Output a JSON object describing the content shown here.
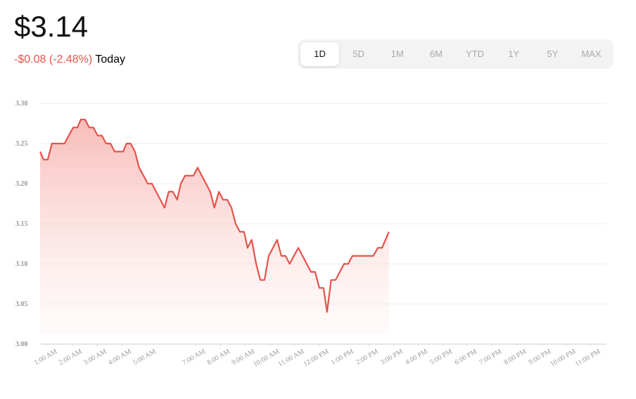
{
  "header": {
    "price": "$3.14",
    "change": "-$0.08 (-2.48%)",
    "change_label": "Today",
    "tabs": [
      "1D",
      "5D",
      "1M",
      "6M",
      "YTD",
      "1Y",
      "5Y",
      "MAX"
    ],
    "selected_tab": 0
  },
  "chart_data": {
    "type": "line",
    "color": "#e5534b",
    "grid": true,
    "x": [
      0.69,
      0.83,
      1.0,
      1.17,
      1.34,
      1.68,
      1.85,
      2.03,
      2.2,
      2.34,
      2.51,
      2.68,
      2.85,
      3.02,
      3.19,
      3.37,
      3.54,
      3.71,
      4.05,
      4.19,
      4.36,
      4.53,
      4.7,
      4.88,
      5.05,
      5.22,
      5.39,
      5.56,
      5.73,
      5.9,
      6.07,
      6.24,
      6.39,
      6.56,
      6.9,
      7.07,
      7.24,
      7.41,
      7.58,
      7.75,
      7.93,
      8.1,
      8.27,
      8.44,
      8.61,
      8.78,
      8.95,
      9.09,
      9.26,
      9.44,
      9.61,
      9.78,
      9.95,
      10.12,
      10.29,
      10.46,
      10.63,
      10.8,
      10.97,
      11.15,
      11.32,
      11.49,
      11.66,
      11.83,
      12.0,
      12.17,
      12.31,
      12.48,
      12.66,
      12.83,
      13.0,
      13.17,
      13.34,
      14.19,
      14.37,
      14.54,
      14.82
    ],
    "values": [
      3.24,
      3.23,
      3.23,
      3.25,
      3.25,
      3.25,
      3.26,
      3.27,
      3.27,
      3.28,
      3.28,
      3.27,
      3.27,
      3.26,
      3.26,
      3.25,
      3.25,
      3.24,
      3.24,
      3.25,
      3.25,
      3.24,
      3.22,
      3.21,
      3.2,
      3.2,
      3.19,
      3.18,
      3.17,
      3.19,
      3.19,
      3.18,
      3.2,
      3.21,
      3.21,
      3.22,
      3.21,
      3.2,
      3.19,
      3.17,
      3.19,
      3.18,
      3.18,
      3.17,
      3.15,
      3.14,
      3.14,
      3.12,
      3.13,
      3.1,
      3.08,
      3.08,
      3.11,
      3.12,
      3.13,
      3.11,
      3.11,
      3.1,
      3.11,
      3.12,
      3.11,
      3.1,
      3.09,
      3.09,
      3.07,
      3.07,
      3.04,
      3.08,
      3.08,
      3.09,
      3.1,
      3.1,
      3.11,
      3.11,
      3.12,
      3.12,
      3.14
    ],
    "xlim": [
      0.69,
      23.63
    ],
    "ylim": [
      3.0,
      3.3
    ],
    "xticks": [
      {
        "value": 1,
        "label": "1:00 AM"
      },
      {
        "value": 2,
        "label": "2:00 AM"
      },
      {
        "value": 3,
        "label": "3:00 AM"
      },
      {
        "value": 4,
        "label": "4:00 AM"
      },
      {
        "value": 5,
        "label": "5:00 AM"
      },
      {
        "value": 7,
        "label": "7:00 AM"
      },
      {
        "value": 8,
        "label": "8:00 AM"
      },
      {
        "value": 9,
        "label": "9:00 AM"
      },
      {
        "value": 10,
        "label": "10:00 AM"
      },
      {
        "value": 11,
        "label": "11:00 AM"
      },
      {
        "value": 12,
        "label": "12:00 PM"
      },
      {
        "value": 13,
        "label": "1:00 PM"
      },
      {
        "value": 14,
        "label": "2:00 PM"
      },
      {
        "value": 15,
        "label": "3:00 PM"
      },
      {
        "value": 16,
        "label": "4:00 PM"
      },
      {
        "value": 17,
        "label": "5:00 PM"
      },
      {
        "value": 18,
        "label": "6:00 PM"
      },
      {
        "value": 19,
        "label": "7:00 PM"
      },
      {
        "value": 20,
        "label": "8:00 PM"
      },
      {
        "value": 21,
        "label": "9:00 PM"
      },
      {
        "value": 22,
        "label": "10:00 PM"
      },
      {
        "value": 23,
        "label": "11:00 PM"
      }
    ],
    "yticks": [
      {
        "value": 3.0,
        "label": "3.00"
      },
      {
        "value": 3.05,
        "label": "3.05"
      },
      {
        "value": 3.1,
        "label": "3.10"
      },
      {
        "value": 3.15,
        "label": "3.15"
      },
      {
        "value": 3.2,
        "label": "3.20"
      },
      {
        "value": 3.25,
        "label": "3.25"
      },
      {
        "value": 3.3,
        "label": "3.30"
      }
    ]
  }
}
